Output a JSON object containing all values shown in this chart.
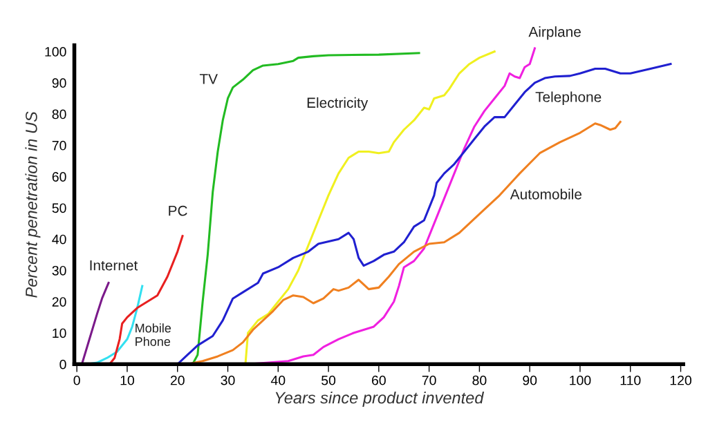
{
  "chart_data": {
    "type": "line",
    "xlabel": "Years since product invented",
    "ylabel": "Percent penetration in US",
    "xlim": [
      -0.5,
      120.5
    ],
    "ylim": [
      0,
      102
    ],
    "xticks": [
      0,
      10,
      20,
      30,
      40,
      50,
      60,
      70,
      80,
      90,
      100,
      110,
      120
    ],
    "yticks": [
      0,
      10,
      20,
      30,
      40,
      50,
      60,
      70,
      80,
      90,
      100
    ],
    "grid": false,
    "legend": false,
    "marker": "none",
    "line_style": "solid",
    "series": [
      {
        "name": "Internet",
        "color": "#7b1a8a",
        "x": [
          1,
          2.5,
          4,
          5,
          6.3
        ],
        "values": [
          0,
          8,
          16,
          21,
          26
        ]
      },
      {
        "name": "Mobile Phone",
        "color": "#33e0f0",
        "x": [
          2,
          4,
          6,
          8,
          10,
          11,
          12,
          13
        ],
        "values": [
          0,
          0.5,
          2,
          4,
          8,
          12,
          18,
          25
        ]
      },
      {
        "name": "PC",
        "color": "#e82020",
        "x": [
          6.5,
          7.5,
          8.5,
          9,
          10,
          12,
          14,
          15,
          16,
          18,
          20,
          21
        ],
        "values": [
          0,
          2,
          8,
          13,
          15,
          18,
          20,
          21,
          22,
          28,
          36,
          41
        ]
      },
      {
        "name": "TV",
        "color": "#22bb22",
        "x": [
          20,
          23,
          24,
          25,
          26,
          27,
          28,
          29,
          30,
          31,
          33,
          35,
          37,
          40,
          43,
          44,
          47,
          50,
          60,
          68
        ],
        "values": [
          0,
          0,
          3,
          20,
          35,
          55,
          68,
          78,
          85,
          88.5,
          91,
          94,
          95.5,
          96,
          97,
          98,
          98.5,
          98.8,
          99,
          99.5
        ]
      },
      {
        "name": "Electricity",
        "color": "#f0f020",
        "x": [
          33.5,
          34,
          36,
          38,
          40,
          42,
          44,
          46,
          48,
          50,
          52,
          54,
          56,
          58,
          60,
          62,
          63,
          65,
          67,
          69,
          70,
          71,
          73,
          74,
          76,
          78,
          80,
          83
        ],
        "values": [
          0,
          10,
          14,
          16,
          20,
          24,
          30,
          38,
          46,
          54,
          61,
          66,
          68,
          68,
          67.5,
          68,
          71,
          75,
          78,
          82,
          81.5,
          85,
          86,
          88,
          93,
          96,
          98,
          100
        ]
      },
      {
        "name": "Airplane",
        "color": "#f020e0",
        "x": [
          34,
          38,
          42,
          45,
          47,
          49,
          52,
          55,
          57,
          59,
          61,
          63,
          64,
          65,
          67,
          69,
          71,
          73,
          75,
          77,
          79,
          81,
          83,
          85,
          86,
          87,
          88,
          89,
          90,
          91
        ],
        "values": [
          0,
          0.5,
          1,
          2.5,
          3,
          5.5,
          8,
          10,
          11,
          12,
          15,
          20,
          25,
          31,
          33,
          37,
          45,
          53,
          61,
          69,
          76,
          81,
          85,
          89,
          93,
          92,
          91.5,
          95,
          96,
          101
        ]
      },
      {
        "name": "Telephone",
        "color": "#2020d0",
        "x": [
          20,
          22,
          24,
          27,
          29,
          31,
          33,
          36,
          37,
          40,
          43,
          46,
          48,
          52,
          54,
          55,
          56,
          57,
          59,
          61,
          63,
          65,
          67,
          69,
          71,
          71.5,
          73,
          75,
          77,
          79,
          81,
          83,
          85,
          87,
          89,
          91,
          93,
          95,
          98,
          100,
          103,
          105,
          108,
          110,
          114,
          118
        ],
        "values": [
          0,
          3,
          6,
          9,
          14,
          21,
          23,
          26,
          29,
          31,
          34,
          36,
          38.5,
          40,
          42,
          40,
          34,
          31.5,
          33,
          35,
          36,
          39,
          44,
          46,
          54,
          58,
          61,
          64,
          68,
          72,
          76,
          79,
          79,
          83,
          87,
          90,
          91.5,
          92,
          92.2,
          93,
          94.5,
          94.5,
          93,
          93,
          94.5,
          96
        ]
      },
      {
        "name": "Automobile",
        "color": "#f08020",
        "x": [
          22,
          25,
          28,
          31,
          33,
          35,
          37,
          39,
          41,
          43,
          45,
          47,
          49,
          51,
          52,
          54,
          56,
          58,
          60,
          62,
          64,
          67,
          70,
          73,
          76,
          80,
          84,
          88,
          92,
          96,
          100,
          103,
          104,
          106,
          107,
          108
        ],
        "values": [
          0,
          1,
          2.5,
          4.5,
          7,
          11,
          14,
          17,
          20.5,
          22,
          21.5,
          19.5,
          21,
          24,
          23.5,
          24.5,
          27,
          24,
          24.5,
          28,
          32,
          36,
          38.5,
          39,
          42,
          48,
          54,
          61,
          67.5,
          71,
          74,
          77,
          76.5,
          75,
          75.5,
          77.5
        ]
      }
    ]
  }
}
